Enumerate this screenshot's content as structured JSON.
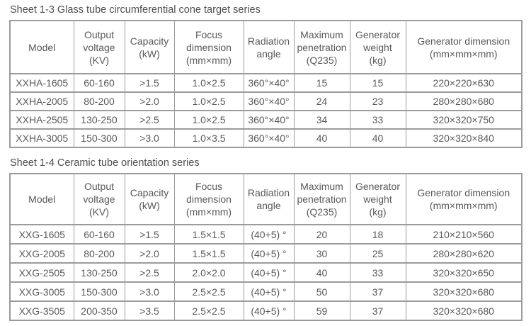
{
  "colors": {
    "border": "#9b9b9b",
    "text": "#595959",
    "title": "#4f4f4f",
    "background": "#ffffff"
  },
  "tables": [
    {
      "title": "Sheet 1-3 Glass tube circumferential cone target series",
      "headers": [
        "Model",
        "Output\nvoltage\n(KV)",
        "Capacity\n(kW)",
        "Focus\ndimension\n(mm×mm)",
        "Radiation\nangle",
        "Maximum\npenetration\n(Q235)",
        "Generator\nweight\n(kg)",
        "Generator dimension\n(mm×mm×mm)"
      ],
      "rows": [
        [
          "XXHA-1605",
          "60-160",
          ">1.5",
          "1.0×2.5",
          "360°×40°",
          "15",
          "15",
          "220×220×630"
        ],
        [
          "XXHA-2005",
          "80-200",
          ">2.0",
          "1.0×2.5",
          "360°×40°",
          "24",
          "23",
          "280×280×680"
        ],
        [
          "XXHA-2505",
          "130-250",
          ">2.5",
          "1.0×2.5",
          "360°×40°",
          "34",
          "33",
          "320×320×750"
        ],
        [
          "XXHA-3005",
          "150-300",
          ">3.0",
          "1.0×3.5",
          "360°×40°",
          "40",
          "40",
          "320×320×840"
        ]
      ]
    },
    {
      "title": "Sheet 1-4 Ceramic tube orientation series",
      "headers": [
        "Model",
        "Output\nvoltage\n(KV)",
        "Capacity\n(kW)",
        "Focus\ndimension\n(mm×mm)",
        "Radiation\nangle",
        "Maximum\npenetration\n(Q235)",
        "Generator\nweight\n(kg)",
        "Generator dimension\n(mm×mm×mm)"
      ],
      "rows": [
        [
          "XXG-1605",
          "60-160",
          ">1.5",
          "1.5×1.5",
          "(40+5) °",
          "20",
          "18",
          "210×210×560"
        ],
        [
          "XXG-2005",
          "80-200",
          ">2.0",
          "1.5×1.5",
          "(40+5) °",
          "30",
          "25",
          "280×280×620"
        ],
        [
          "XXG-2505",
          "130-250",
          ">2.5",
          "2.0×2.0",
          "(40+5) °",
          "40",
          "33",
          "320×320×650"
        ],
        [
          "XXG-3005",
          "150-300",
          ">3.0",
          "2.5×2.5",
          "(40+5) °",
          "50",
          "37",
          "320×320×680"
        ],
        [
          "XXG-3505",
          "200-350",
          ">3.5",
          "2.5×2.5",
          "(40+5) °",
          "59",
          "37",
          "320×320×680"
        ]
      ]
    }
  ]
}
